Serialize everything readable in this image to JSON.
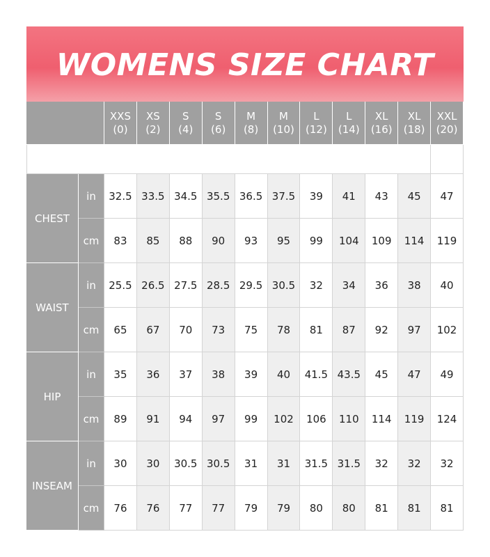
{
  "header": {
    "title": "WOMENS SIZE CHART"
  },
  "table": {
    "columns": [
      {
        "size": "XXS",
        "code": "(0)"
      },
      {
        "size": "XS",
        "code": "(2)"
      },
      {
        "size": "S",
        "code": "(4)"
      },
      {
        "size": "S",
        "code": "(6)"
      },
      {
        "size": "M",
        "code": "(8)"
      },
      {
        "size": "M",
        "code": "(10)"
      },
      {
        "size": "L",
        "code": "(12)"
      },
      {
        "size": "L",
        "code": "(14)"
      },
      {
        "size": "XL",
        "code": "(16)"
      },
      {
        "size": "XL",
        "code": "(18)"
      },
      {
        "size": "XXL",
        "code": "(20)"
      }
    ],
    "groups": [
      {
        "name": "CHEST",
        "rows": [
          {
            "unit": "in",
            "values": [
              32.5,
              33.5,
              34.5,
              35.5,
              36.5,
              37.5,
              39,
              41,
              43,
              45,
              47
            ]
          },
          {
            "unit": "cm",
            "values": [
              83,
              85,
              88,
              90,
              93,
              95,
              99,
              104,
              109,
              114,
              119
            ]
          }
        ]
      },
      {
        "name": "WAIST",
        "rows": [
          {
            "unit": "in",
            "values": [
              25.5,
              26.5,
              27.5,
              28.5,
              29.5,
              30.5,
              32,
              34,
              36,
              38,
              40
            ]
          },
          {
            "unit": "cm",
            "values": [
              65,
              67,
              70,
              73,
              75,
              78,
              81,
              87,
              92,
              97,
              102
            ]
          }
        ]
      },
      {
        "name": "HIP",
        "rows": [
          {
            "unit": "in",
            "values": [
              35,
              36,
              37,
              38,
              39,
              40,
              41.5,
              43.5,
              45,
              47,
              49
            ]
          },
          {
            "unit": "cm",
            "values": [
              89,
              91,
              94,
              97,
              99,
              102,
              106,
              110,
              114,
              119,
              124
            ]
          }
        ]
      },
      {
        "name": "INSEAM",
        "rows": [
          {
            "unit": "in",
            "values": [
              30,
              30,
              30.5,
              30.5,
              31,
              31,
              31.5,
              31.5,
              32,
              32,
              32
            ]
          },
          {
            "unit": "cm",
            "values": [
              76,
              76,
              77,
              77,
              79,
              79,
              80,
              80,
              81,
              81,
              81
            ]
          }
        ]
      }
    ]
  }
}
